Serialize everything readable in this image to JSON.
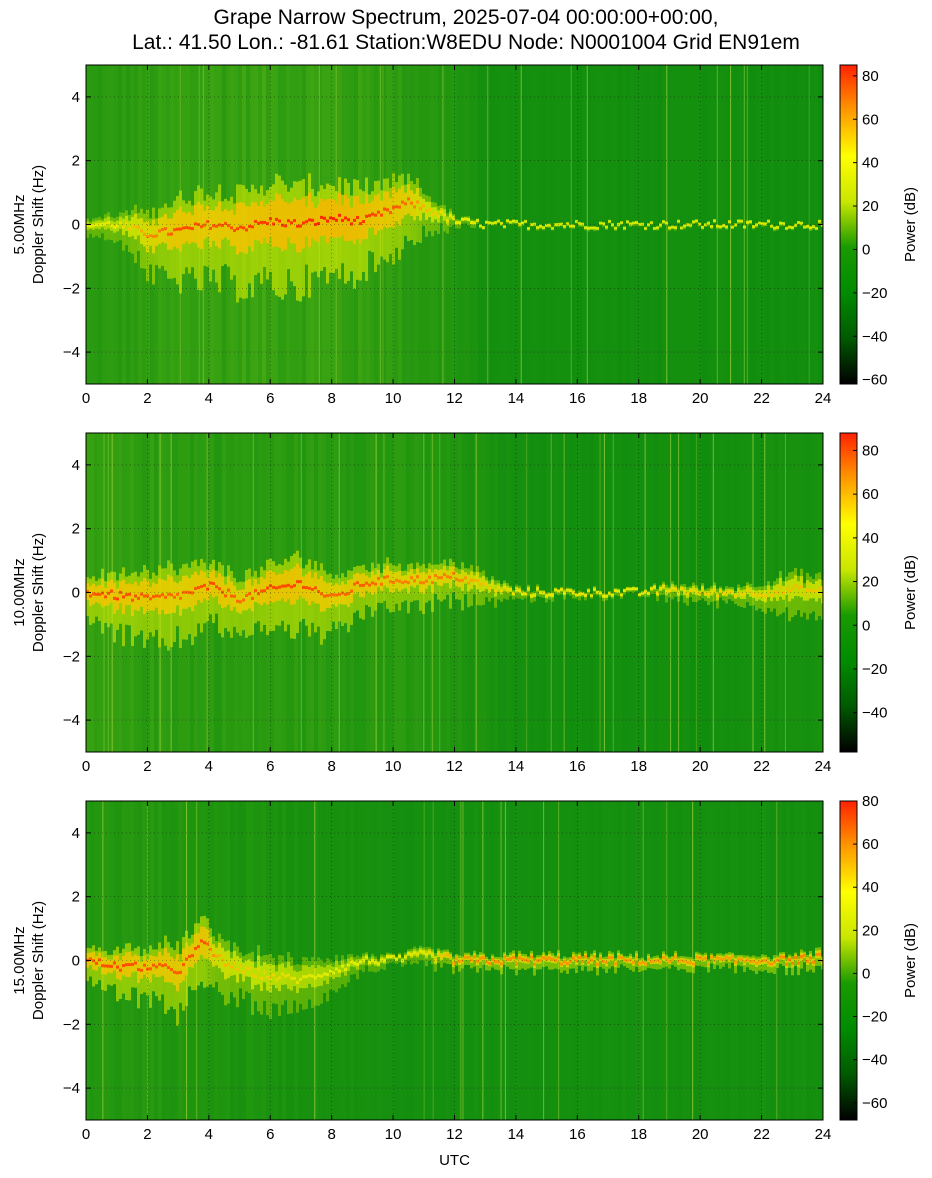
{
  "title_line1": "Grape Narrow Spectrum, 2025-07-04 00:00:00+00:00,",
  "title_line2": "Lat.: 41.50 Lon.: -81.61 Station:W8EDU Node: N0001004 Grid EN91em",
  "colors": {
    "colormap": [
      "#000000",
      "#005a00",
      "#008c00",
      "#1a9a00",
      "#c8e600",
      "#ffff00",
      "#ff9900",
      "#ff2200"
    ],
    "background_field": "#0e8c0e"
  },
  "chart_data": [
    {
      "type": "heatmap",
      "id": "p5",
      "freq_label": "5.00MHz",
      "ylabel": "Doppler Shift (Hz)",
      "xlabel": "",
      "xlim": [
        0,
        24
      ],
      "ylim": [
        -5,
        5
      ],
      "x_ticks": [
        "0",
        "2",
        "4",
        "6",
        "8",
        "10",
        "12",
        "14",
        "16",
        "18",
        "20",
        "22",
        "24"
      ],
      "y_ticks": [
        "4",
        "2",
        "0",
        "−2",
        "−4"
      ],
      "grid": true,
      "colorbar": {
        "label": "Power (dB)",
        "range": [
          -62,
          85
        ],
        "ticks": [
          "80",
          "60",
          "40",
          "20",
          "0",
          "−20",
          "−40",
          "−60"
        ],
        "tick_values": [
          80,
          60,
          40,
          20,
          0,
          -20,
          -40,
          -60
        ]
      },
      "trace": {
        "x": [
          0,
          1,
          2,
          3,
          4,
          5,
          6,
          7,
          8,
          9,
          10,
          10.5,
          11,
          12,
          13,
          14,
          16,
          18,
          20,
          22,
          24
        ],
        "y": [
          0,
          0,
          -0.3,
          -0.2,
          0,
          -0.1,
          0.1,
          0,
          0.2,
          0.1,
          0.5,
          0.7,
          0.5,
          0.1,
          0,
          0,
          0,
          0,
          0,
          0,
          0
        ],
        "intensity": [
          0.3,
          0.35,
          0.7,
          0.9,
          0.85,
          0.9,
          0.95,
          0.95,
          1,
          0.95,
          0.85,
          0.8,
          0.55,
          0.3,
          0.25,
          0.25,
          0.25,
          0.25,
          0.25,
          0.25,
          0.25
        ],
        "spread": [
          0.3,
          0.5,
          1.2,
          1.6,
          1.8,
          1.8,
          2,
          1.9,
          1.8,
          1.6,
          1.4,
          1.2,
          0.8,
          0.2,
          0.08,
          0.08,
          0.08,
          0.08,
          0.08,
          0.08,
          0.08
        ]
      },
      "background_activity": {
        "x": [
          0,
          2,
          4,
          6,
          8,
          10,
          12,
          13,
          16,
          20,
          24
        ],
        "level": [
          0.35,
          0.45,
          0.55,
          0.6,
          0.55,
          0.45,
          0.25,
          0.1,
          0.08,
          0.08,
          0.08
        ]
      }
    },
    {
      "type": "heatmap",
      "id": "p10",
      "freq_label": "10.00MHz",
      "ylabel": "Doppler Shift (Hz)",
      "xlabel": "",
      "xlim": [
        0,
        24
      ],
      "ylim": [
        -5,
        5
      ],
      "x_ticks": [
        "0",
        "2",
        "4",
        "6",
        "8",
        "10",
        "12",
        "14",
        "16",
        "18",
        "20",
        "22",
        "24"
      ],
      "y_ticks": [
        "4",
        "2",
        "0",
        "−2",
        "−4"
      ],
      "grid": true,
      "colorbar": {
        "label": "Power (dB)",
        "range": [
          -58,
          88
        ],
        "ticks": [
          "80",
          "60",
          "40",
          "20",
          "0",
          "−20",
          "−40"
        ],
        "tick_values": [
          80,
          60,
          40,
          20,
          0,
          -20,
          -40
        ]
      },
      "trace": {
        "x": [
          0,
          1,
          2,
          3,
          4,
          5,
          6,
          7,
          8,
          9,
          10,
          11,
          12,
          13,
          14,
          16,
          18,
          19,
          20,
          21,
          22,
          23,
          24
        ],
        "y": [
          0,
          -0.1,
          -0.2,
          -0.1,
          0.2,
          -0.2,
          0.1,
          0.3,
          -0.2,
          0.3,
          0.4,
          0.4,
          0.5,
          0.2,
          0,
          0,
          0,
          0.1,
          0,
          0,
          0,
          0.1,
          0
        ],
        "intensity": [
          0.85,
          0.9,
          0.85,
          0.8,
          0.9,
          0.8,
          0.9,
          0.9,
          0.8,
          0.85,
          0.75,
          0.75,
          0.75,
          0.5,
          0.35,
          0.35,
          0.3,
          0.4,
          0.45,
          0.45,
          0.5,
          0.55,
          0.5
        ],
        "spread": [
          0.8,
          1.2,
          1.5,
          1.4,
          1.2,
          1.1,
          1.2,
          1.4,
          1.2,
          0.9,
          0.8,
          0.8,
          0.8,
          0.5,
          0.2,
          0.15,
          0.1,
          0.3,
          0.3,
          0.3,
          0.5,
          0.8,
          0.7
        ]
      },
      "background_activity": {
        "x": [
          0,
          2,
          4,
          6,
          8,
          10,
          12,
          14,
          16,
          20,
          22,
          24
        ],
        "level": [
          0.45,
          0.45,
          0.4,
          0.4,
          0.4,
          0.35,
          0.25,
          0.1,
          0.08,
          0.08,
          0.12,
          0.15
        ]
      }
    },
    {
      "type": "heatmap",
      "id": "p15",
      "freq_label": "15.00MHz",
      "ylabel": "Doppler Shift (Hz)",
      "xlabel": "UTC",
      "xlim": [
        0,
        24
      ],
      "ylim": [
        -5,
        5
      ],
      "x_ticks": [
        "0",
        "2",
        "4",
        "6",
        "8",
        "10",
        "12",
        "14",
        "16",
        "18",
        "20",
        "22",
        "24"
      ],
      "y_ticks": [
        "4",
        "2",
        "0",
        "−2",
        "−4"
      ],
      "grid": true,
      "colorbar": {
        "label": "Power (dB)",
        "range": [
          -68,
          80
        ],
        "ticks": [
          "80",
          "60",
          "40",
          "20",
          "0",
          "−20",
          "−40",
          "−60"
        ],
        "tick_values": [
          80,
          60,
          40,
          20,
          0,
          -20,
          -40,
          -60
        ]
      },
      "trace": {
        "x": [
          0,
          1,
          2,
          3,
          3.8,
          4.2,
          5,
          6,
          7,
          8,
          9,
          10,
          11,
          12,
          13,
          14,
          16,
          18,
          20,
          22,
          23,
          24
        ],
        "y": [
          0,
          -0.2,
          -0.2,
          -0.3,
          0.6,
          0.1,
          -0.3,
          -0.5,
          -0.6,
          -0.3,
          0,
          0,
          0.2,
          0,
          0,
          0,
          0,
          0,
          0,
          0,
          0,
          0.1
        ],
        "intensity": [
          0.85,
          0.9,
          0.85,
          0.85,
          0.9,
          0.6,
          0.5,
          0.45,
          0.35,
          0.3,
          0.3,
          0.3,
          0.35,
          0.65,
          0.7,
          0.7,
          0.7,
          0.65,
          0.65,
          0.65,
          0.75,
          0.7
        ],
        "spread": [
          0.6,
          0.9,
          1.1,
          1.3,
          1.1,
          1.1,
          1,
          1,
          0.9,
          0.6,
          0.3,
          0.2,
          0.3,
          0.3,
          0.3,
          0.3,
          0.3,
          0.25,
          0.25,
          0.3,
          0.3,
          0.3
        ]
      },
      "background_activity": {
        "x": [
          0,
          2,
          4,
          6,
          8,
          10,
          12,
          16,
          20,
          24
        ],
        "level": [
          0.3,
          0.3,
          0.25,
          0.2,
          0.15,
          0.1,
          0.1,
          0.1,
          0.1,
          0.1
        ]
      }
    }
  ]
}
